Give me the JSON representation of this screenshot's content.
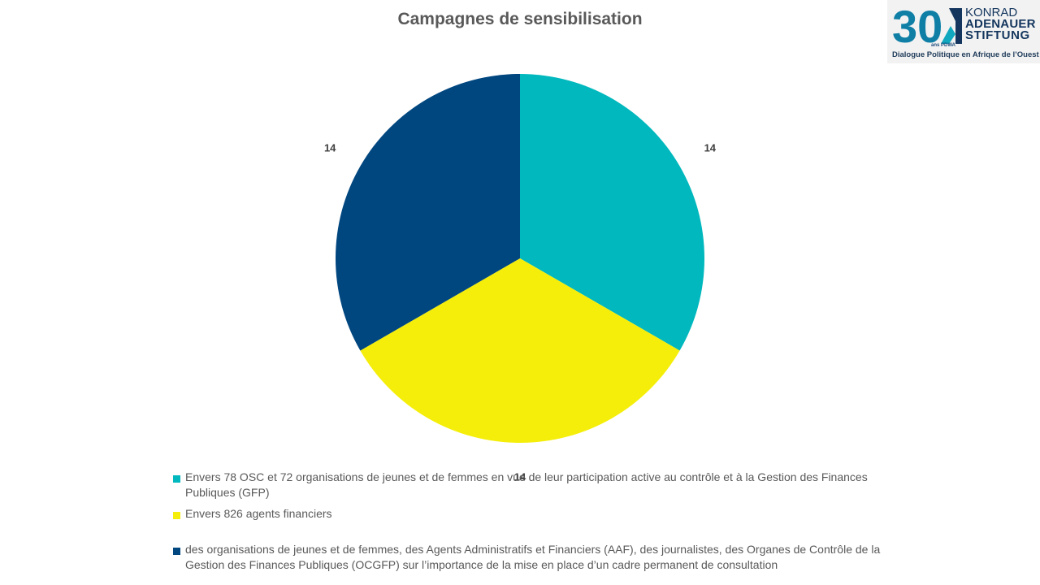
{
  "chart_data": {
    "type": "pie",
    "title": "Campagnes de sensibilisation",
    "categories": [
      "Envers 78 OSC et 72 organisations de jeunes et de femmes en vue de leur participation active au contrôle et à la Gestion des Finances Publiques (GFP)",
      "Envers 826 agents financiers",
      "des organisations de jeunes et de femmes, des Agents Administratifs et Financiers (AAF), des journalistes, des Organes de Contrôle de la Gestion des Finances Publiques (OCGFP) sur l’importance de la mise en place d’un cadre permanent  de consultation"
    ],
    "values": [
      14,
      14,
      14
    ],
    "data_labels": [
      "14",
      "14",
      "14"
    ],
    "colors": [
      "#00b8bd",
      "#f5ee0a",
      "#00467f"
    ],
    "legend_position": "bottom"
  },
  "logo": {
    "number": "30",
    "small_text": "ans PDWA",
    "line1": "KONRAD",
    "line2": "ADENAUER",
    "line3": "STIFTUNG",
    "subtitle": "Dialogue Politique en Afrique de l’Ouest",
    "colors": {
      "teal": "#0fa8bf",
      "navy": "#14365e"
    }
  }
}
